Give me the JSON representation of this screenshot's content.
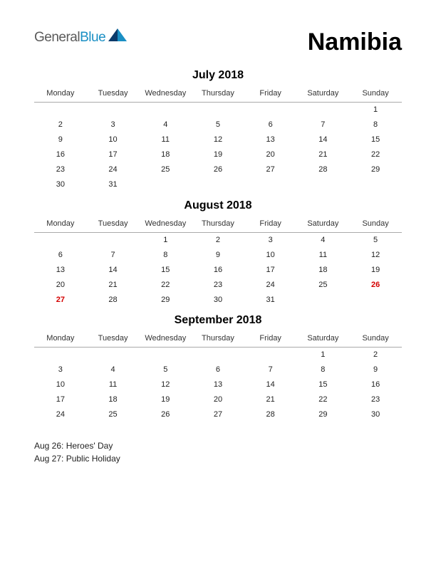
{
  "logo": {
    "text_general": "General",
    "text_blue": "Blue",
    "icon_color_1": "#0a3a6b",
    "icon_color_2": "#1a8fc4"
  },
  "country": "Namibia",
  "day_headers": [
    "Monday",
    "Tuesday",
    "Wednesday",
    "Thursday",
    "Friday",
    "Saturday",
    "Sunday"
  ],
  "months": [
    {
      "title": "July 2018",
      "weeks": [
        [
          "",
          "",
          "",
          "",
          "",
          "",
          "1"
        ],
        [
          "2",
          "3",
          "4",
          "5",
          "6",
          "7",
          "8"
        ],
        [
          "9",
          "10",
          "11",
          "12",
          "13",
          "14",
          "15"
        ],
        [
          "16",
          "17",
          "18",
          "19",
          "20",
          "21",
          "22"
        ],
        [
          "23",
          "24",
          "25",
          "26",
          "27",
          "28",
          "29"
        ],
        [
          "30",
          "31",
          "",
          "",
          "",
          "",
          ""
        ]
      ],
      "holidays": []
    },
    {
      "title": "August 2018",
      "weeks": [
        [
          "",
          "",
          "1",
          "2",
          "3",
          "4",
          "5"
        ],
        [
          "6",
          "7",
          "8",
          "9",
          "10",
          "11",
          "12"
        ],
        [
          "13",
          "14",
          "15",
          "16",
          "17",
          "18",
          "19"
        ],
        [
          "20",
          "21",
          "22",
          "23",
          "24",
          "25",
          "26"
        ],
        [
          "27",
          "28",
          "29",
          "30",
          "31",
          "",
          ""
        ]
      ],
      "holidays": [
        "26",
        "27"
      ]
    },
    {
      "title": "September 2018",
      "weeks": [
        [
          "",
          "",
          "",
          "",
          "",
          "1",
          "2"
        ],
        [
          "3",
          "4",
          "5",
          "6",
          "7",
          "8",
          "9"
        ],
        [
          "10",
          "11",
          "12",
          "13",
          "14",
          "15",
          "16"
        ],
        [
          "17",
          "18",
          "19",
          "20",
          "21",
          "22",
          "23"
        ],
        [
          "24",
          "25",
          "26",
          "27",
          "28",
          "29",
          "30"
        ]
      ],
      "holidays": []
    }
  ],
  "holiday_list": [
    "Aug 26: Heroes' Day",
    "Aug 27: Public Holiday"
  ],
  "colors": {
    "background": "#ffffff",
    "text": "#000000",
    "header_text": "#333333",
    "holiday": "#d40000",
    "border": "#aaaaaa"
  },
  "typography": {
    "country_fontsize": 34,
    "month_title_fontsize": 16,
    "header_fontsize": 11,
    "cell_fontsize": 11,
    "holiday_list_fontsize": 12
  }
}
